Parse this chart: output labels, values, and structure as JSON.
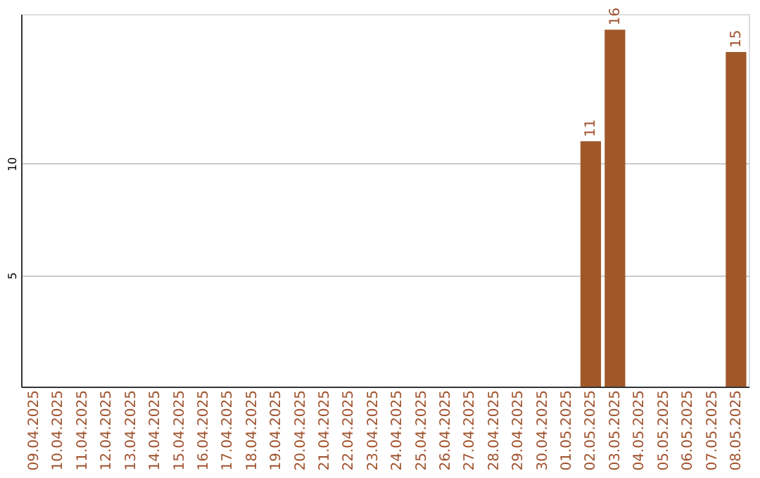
{
  "chart_data": {
    "type": "bar",
    "categories": [
      "09.04.2025",
      "10.04.2025",
      "11.04.2025",
      "12.04.2025",
      "13.04.2025",
      "14.04.2025",
      "15.04.2025",
      "16.04.2025",
      "17.04.2025",
      "18.04.2025",
      "19.04.2025",
      "20.04.2025",
      "21.04.2025",
      "22.04.2025",
      "23.04.2025",
      "24.04.2025",
      "25.04.2025",
      "26.04.2025",
      "27.04.2025",
      "28.04.2025",
      "29.04.2025",
      "30.04.2025",
      "01.05.2025",
      "02.05.2025",
      "03.05.2025",
      "04.05.2025",
      "05.05.2025",
      "06.05.2025",
      "07.05.2025",
      "08.05.2025"
    ],
    "values": [
      null,
      null,
      null,
      null,
      null,
      null,
      null,
      null,
      null,
      null,
      null,
      null,
      null,
      null,
      null,
      null,
      null,
      null,
      null,
      null,
      null,
      null,
      null,
      11,
      16,
      null,
      null,
      null,
      null,
      15
    ],
    "color": "#a0582a",
    "ylim": [
      0,
      16.7
    ],
    "yticks": [
      5,
      10
    ],
    "grid": "y",
    "data_labels": true
  }
}
